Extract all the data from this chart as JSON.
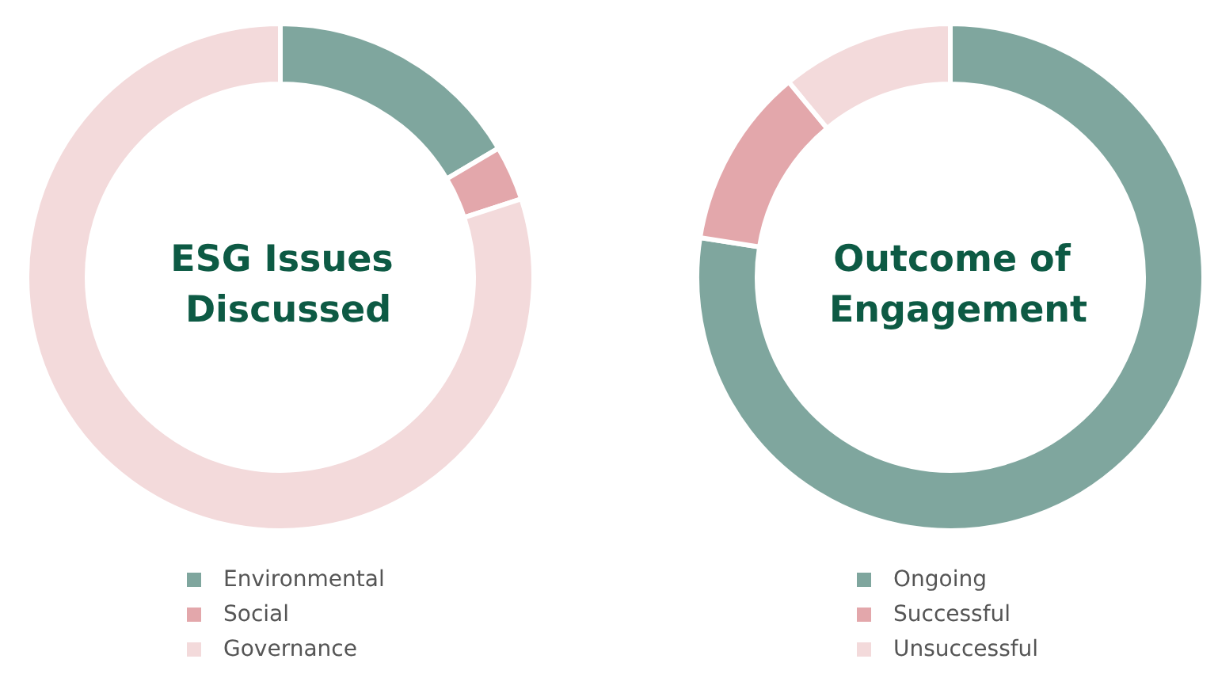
{
  "chart_data": [
    {
      "type": "donut",
      "title": "ESG Issues Discussed",
      "categories": [
        "Environmental",
        "Social",
        "Governance"
      ],
      "values": [
        16.5,
        3.5,
        80
      ],
      "colors": [
        "#7fa69e",
        "#e3a7ab",
        "#f3dadb"
      ],
      "legend": "bottom"
    },
    {
      "type": "donut",
      "title": "Outcome of Engagement",
      "categories": [
        "Ongoing",
        "Successful",
        "Unsuccessful"
      ],
      "values": [
        77.5,
        11.5,
        11
      ],
      "colors": [
        "#7fa69e",
        "#e3a7ab",
        "#f3dadb"
      ],
      "legend": "bottom"
    }
  ]
}
